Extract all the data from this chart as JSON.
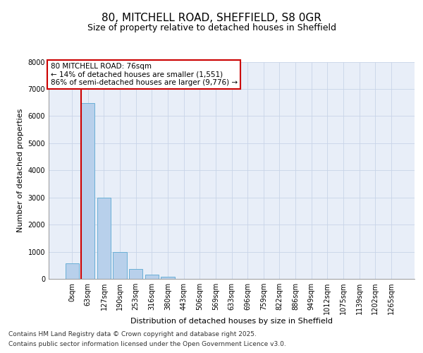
{
  "title_line1": "80, MITCHELL ROAD, SHEFFIELD, S8 0GR",
  "title_line2": "Size of property relative to detached houses in Sheffield",
  "xlabel": "Distribution of detached houses by size in Sheffield",
  "ylabel": "Number of detached properties",
  "categories": [
    "0sqm",
    "63sqm",
    "127sqm",
    "190sqm",
    "253sqm",
    "316sqm",
    "380sqm",
    "443sqm",
    "506sqm",
    "569sqm",
    "633sqm",
    "696sqm",
    "759sqm",
    "822sqm",
    "886sqm",
    "949sqm",
    "1012sqm",
    "1075sqm",
    "1139sqm",
    "1202sqm",
    "1265sqm"
  ],
  "values": [
    580,
    6480,
    2980,
    980,
    360,
    150,
    90,
    0,
    0,
    0,
    0,
    0,
    0,
    0,
    0,
    0,
    0,
    0,
    0,
    0,
    0
  ],
  "bar_color": "#b8d0eb",
  "bar_edge_color": "#6aafd6",
  "vertical_line_color": "#cc0000",
  "vertical_line_x": 0.575,
  "annotation_text": "80 MITCHELL ROAD: 76sqm\n← 14% of detached houses are smaller (1,551)\n86% of semi-detached houses are larger (9,776) →",
  "annotation_box_edgecolor": "#cc0000",
  "ylim": [
    0,
    8000
  ],
  "yticks": [
    0,
    1000,
    2000,
    3000,
    4000,
    5000,
    6000,
    7000,
    8000
  ],
  "grid_color": "#c8d4e8",
  "background_color": "#e8eef8",
  "footer_line1": "Contains HM Land Registry data © Crown copyright and database right 2025.",
  "footer_line2": "Contains public sector information licensed under the Open Government Licence v3.0.",
  "title_fontsize": 11,
  "subtitle_fontsize": 9,
  "axis_label_fontsize": 8,
  "tick_fontsize": 7,
  "footer_fontsize": 6.5,
  "annotation_fontsize": 7.5
}
